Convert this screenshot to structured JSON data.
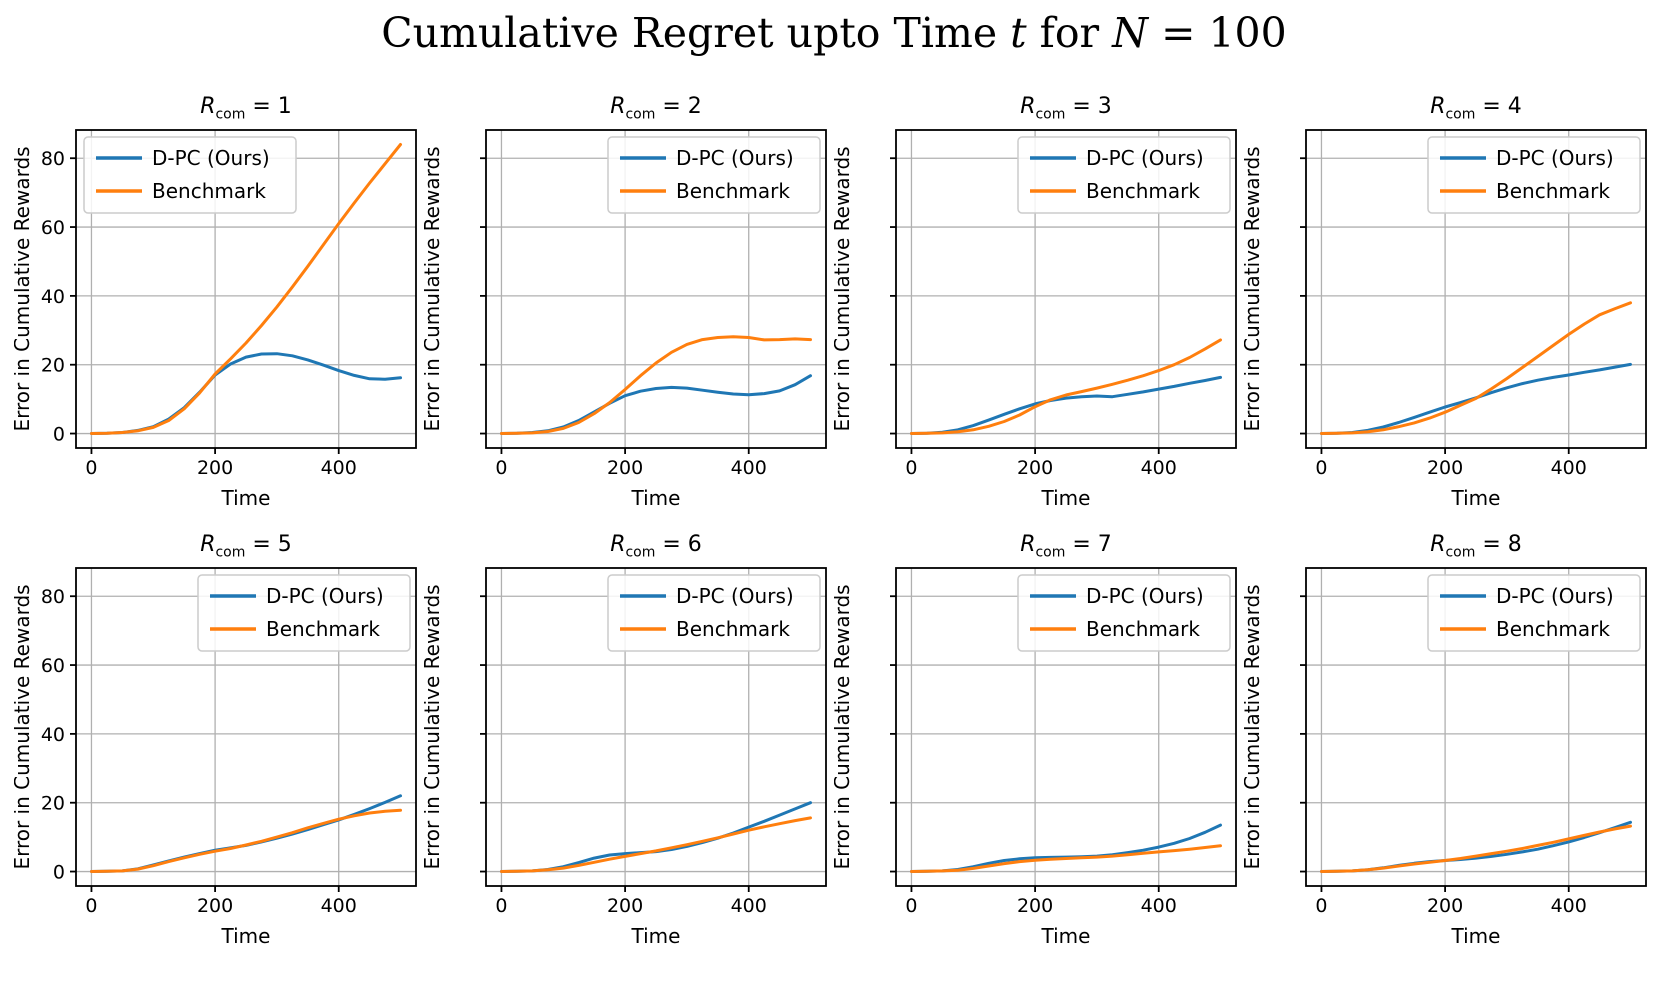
{
  "figure_title": {
    "part1": "Cumulative Regret upto Time ",
    "var_t": "t",
    "part2": " for ",
    "var_n": "N",
    "part3": " = 100"
  },
  "chart_data": {
    "type": "line",
    "suptitle": "Cumulative Regret upto Time t for N = 100",
    "title_var": "R",
    "title_sub": "com",
    "xlabel": "Time",
    "ylabel": "Error in Cumulative Rewards",
    "xlim": [
      -25,
      525
    ],
    "ylim": [
      -4.2,
      88.2
    ],
    "xticks": [
      0,
      200,
      400
    ],
    "yticks": [
      0,
      20,
      40,
      60,
      80
    ],
    "grid": true,
    "legend": [
      "D-PC (Ours)",
      "Benchmark"
    ],
    "legend_position_default": "upper-right",
    "colors": {
      "dpc": "#1f77b4",
      "benchmark": "#ff7f0e",
      "grid": "#b0b0b0"
    },
    "x": [
      0,
      25,
      50,
      75,
      100,
      125,
      150,
      175,
      200,
      225,
      250,
      275,
      300,
      325,
      350,
      375,
      400,
      425,
      450,
      475,
      500
    ],
    "subplots": [
      {
        "title_text": "R_com = 1",
        "title_eq": " = 1",
        "legend_loc": "upper-left",
        "show_ytick_labels": true,
        "dpc": [
          0,
          0.1,
          0.3,
          0.9,
          2.0,
          4.2,
          7.5,
          12.0,
          17.0,
          20.2,
          22.2,
          23.1,
          23.2,
          22.6,
          21.4,
          19.9,
          18.3,
          16.9,
          15.9,
          15.8,
          16.2
        ],
        "benchmark": [
          0,
          0.1,
          0.3,
          0.8,
          1.8,
          3.8,
          7.2,
          11.8,
          17.3,
          21.7,
          26.3,
          31.4,
          36.8,
          42.6,
          48.6,
          54.8,
          61.0,
          67.0,
          72.8,
          78.4,
          84.0
        ]
      },
      {
        "title_text": "R_com = 2",
        "title_eq": " = 2",
        "legend_loc": "upper-right",
        "show_ytick_labels": false,
        "dpc": [
          0,
          0.1,
          0.3,
          0.8,
          1.9,
          3.8,
          6.3,
          8.8,
          11.0,
          12.3,
          13.1,
          13.4,
          13.2,
          12.6,
          12.0,
          11.5,
          11.3,
          11.6,
          12.4,
          14.2,
          16.8
        ],
        "benchmark": [
          0,
          0.1,
          0.2,
          0.6,
          1.5,
          3.2,
          5.8,
          9.0,
          12.8,
          16.8,
          20.5,
          23.6,
          25.9,
          27.3,
          27.9,
          28.1,
          27.9,
          27.2,
          27.3,
          27.5,
          27.3
        ]
      },
      {
        "title_text": "R_com = 3",
        "title_eq": " = 3",
        "legend_loc": "upper-right",
        "show_ytick_labels": false,
        "dpc": [
          0,
          0.1,
          0.4,
          1.1,
          2.3,
          3.9,
          5.6,
          7.2,
          8.6,
          9.6,
          10.3,
          10.7,
          10.9,
          10.7,
          11.4,
          12.1,
          12.9,
          13.7,
          14.6,
          15.4,
          16.3
        ],
        "benchmark": [
          0,
          0.1,
          0.2,
          0.5,
          1.1,
          2.1,
          3.5,
          5.4,
          7.8,
          9.8,
          11.2,
          12.2,
          13.2,
          14.3,
          15.5,
          16.8,
          18.3,
          20.0,
          22.1,
          24.6,
          27.2
        ]
      },
      {
        "title_text": "R_com = 4",
        "title_eq": " = 4",
        "legend_loc": "upper-right",
        "show_ytick_labels": false,
        "dpc": [
          0,
          0.1,
          0.3,
          0.9,
          1.9,
          3.2,
          4.7,
          6.2,
          7.7,
          9.0,
          10.4,
          11.9,
          13.3,
          14.5,
          15.5,
          16.3,
          17.0,
          17.8,
          18.5,
          19.3,
          20.1
        ],
        "benchmark": [
          0,
          0.1,
          0.2,
          0.5,
          1.1,
          2.0,
          3.1,
          4.5,
          6.2,
          8.2,
          10.2,
          13.0,
          16.0,
          19.2,
          22.4,
          25.6,
          28.8,
          31.8,
          34.5,
          36.3,
          38.0
        ]
      },
      {
        "title_text": "R_com = 5",
        "title_eq": " = 5",
        "legend_loc": "upper-right",
        "show_ytick_labels": true,
        "dpc": [
          0,
          0.1,
          0.2,
          0.8,
          1.9,
          3.1,
          4.2,
          5.2,
          6.2,
          6.9,
          7.6,
          8.6,
          9.7,
          10.9,
          12.2,
          13.6,
          15.0,
          16.6,
          18.3,
          20.1,
          22.0
        ],
        "benchmark": [
          0,
          0.1,
          0.2,
          0.7,
          1.7,
          2.9,
          4.0,
          5.0,
          5.9,
          6.7,
          7.7,
          8.8,
          10.0,
          11.3,
          12.7,
          14.0,
          15.2,
          16.2,
          17.0,
          17.5,
          17.8
        ]
      },
      {
        "title_text": "R_com = 6",
        "title_eq": " = 6",
        "legend_loc": "upper-right",
        "show_ytick_labels": false,
        "dpc": [
          0,
          0.1,
          0.2,
          0.6,
          1.4,
          2.6,
          3.9,
          4.8,
          5.2,
          5.5,
          5.8,
          6.4,
          7.3,
          8.4,
          9.7,
          11.2,
          12.9,
          14.6,
          16.4,
          18.2,
          20.0
        ],
        "benchmark": [
          0,
          0.1,
          0.2,
          0.5,
          1.0,
          1.8,
          2.7,
          3.6,
          4.4,
          5.2,
          6.0,
          6.9,
          7.8,
          8.8,
          9.8,
          10.9,
          12.0,
          13.0,
          13.9,
          14.8,
          15.6
        ]
      },
      {
        "title_text": "R_com = 7",
        "title_eq": " = 7",
        "legend_loc": "upper-right",
        "show_ytick_labels": false,
        "dpc": [
          0,
          0.1,
          0.2,
          0.6,
          1.4,
          2.4,
          3.2,
          3.7,
          4.0,
          4.1,
          4.2,
          4.3,
          4.5,
          4.9,
          5.5,
          6.2,
          7.1,
          8.2,
          9.6,
          11.4,
          13.5
        ],
        "benchmark": [
          0,
          0.1,
          0.2,
          0.4,
          0.9,
          1.6,
          2.3,
          2.9,
          3.3,
          3.6,
          3.8,
          4.0,
          4.2,
          4.5,
          4.9,
          5.3,
          5.7,
          6.1,
          6.5,
          7.0,
          7.5
        ]
      },
      {
        "title_text": "R_com = 8",
        "title_eq": " = 8",
        "legend_loc": "upper-right",
        "show_ytick_labels": false,
        "dpc": [
          0,
          0.1,
          0.2,
          0.5,
          1.1,
          1.8,
          2.4,
          2.9,
          3.2,
          3.5,
          3.9,
          4.4,
          5.0,
          5.7,
          6.5,
          7.5,
          8.6,
          9.9,
          11.3,
          12.8,
          14.3
        ],
        "benchmark": [
          0,
          0.1,
          0.2,
          0.5,
          1.0,
          1.6,
          2.2,
          2.7,
          3.2,
          3.8,
          4.5,
          5.2,
          5.9,
          6.7,
          7.6,
          8.5,
          9.5,
          10.5,
          11.5,
          12.4,
          13.2
        ]
      }
    ]
  }
}
